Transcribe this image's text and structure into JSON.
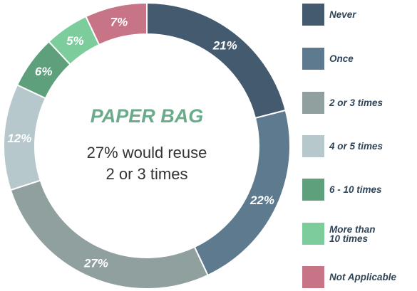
{
  "chart_data": {
    "type": "pie",
    "variant": "donut",
    "center_title": "PAPER BAG",
    "center_text_line1": "27% would reuse",
    "center_text_line2": "2 or 3 times",
    "slices": [
      {
        "name": "Never",
        "value": 21,
        "label": "21%",
        "color": "#445a6e"
      },
      {
        "name": "Once",
        "value": 22,
        "label": "22%",
        "color": "#5e7a8f"
      },
      {
        "name": "2 or 3 times",
        "value": 27,
        "label": "27%",
        "color": "#8fa09f"
      },
      {
        "name": "4 or 5 times",
        "value": 12,
        "label": "12%",
        "color": "#b6c8cc"
      },
      {
        "name": "6 - 10 times",
        "value": 6,
        "label": "6%",
        "color": "#5ea07c"
      },
      {
        "name": "More than\n10 times",
        "value": 5,
        "label": "5%",
        "color": "#7ccc9c"
      },
      {
        "name": "Not Applicable",
        "value": 7,
        "label": "7%",
        "color": "#c77487"
      }
    ],
    "legend_position": "right"
  }
}
